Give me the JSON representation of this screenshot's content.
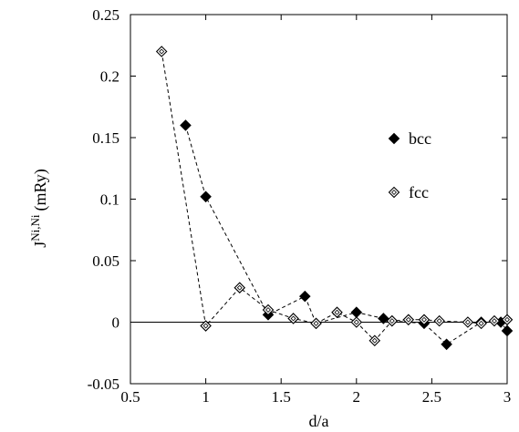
{
  "chart_data": {
    "type": "scatter",
    "title": "",
    "xlabel": "d/a",
    "ylabel": {
      "main": "J",
      "superscript": "Ni,Ni",
      "unit": "(mRy)"
    },
    "xlim": [
      0.5,
      3
    ],
    "ylim": [
      -0.05,
      0.25
    ],
    "xticks": [
      0.5,
      1,
      1.5,
      2,
      2.5,
      3
    ],
    "xtick_labels": [
      "0.5",
      "1",
      "1.5",
      "2",
      "2.5",
      "3"
    ],
    "yticks": [
      -0.05,
      0,
      0.05,
      0.1,
      0.15,
      0.2,
      0.25
    ],
    "ytick_labels": [
      "-0.05",
      "0",
      "0.05",
      "0.1",
      "0.15",
      "0.2",
      "0.25"
    ],
    "grid": false,
    "zero_line": true,
    "legend_position": "right",
    "series": [
      {
        "name": "bcc",
        "marker": "filled-diamond",
        "line": "dashed",
        "color": "#000000",
        "x": [
          0.866,
          1.0,
          1.414,
          1.658,
          1.732,
          2.0,
          2.179,
          2.236,
          2.449,
          2.598,
          2.828,
          2.958,
          3.0
        ],
        "y": [
          0.16,
          0.102,
          0.006,
          0.021,
          -0.001,
          0.008,
          0.003,
          0.001,
          -0.001,
          -0.018,
          0.0,
          0.0,
          -0.007
        ]
      },
      {
        "name": "fcc",
        "marker": "open-diamond",
        "line": "dashed",
        "color": "#000000",
        "x": [
          0.707,
          1.0,
          1.225,
          1.414,
          1.581,
          1.732,
          1.871,
          2.0,
          2.121,
          2.236,
          2.345,
          2.449,
          2.55,
          2.739,
          2.828,
          2.915,
          3.0
        ],
        "y": [
          0.22,
          -0.003,
          0.028,
          0.01,
          0.003,
          -0.001,
          0.008,
          0.0,
          -0.015,
          0.001,
          0.002,
          0.002,
          0.001,
          0.0,
          -0.001,
          0.001,
          0.002
        ]
      }
    ]
  }
}
